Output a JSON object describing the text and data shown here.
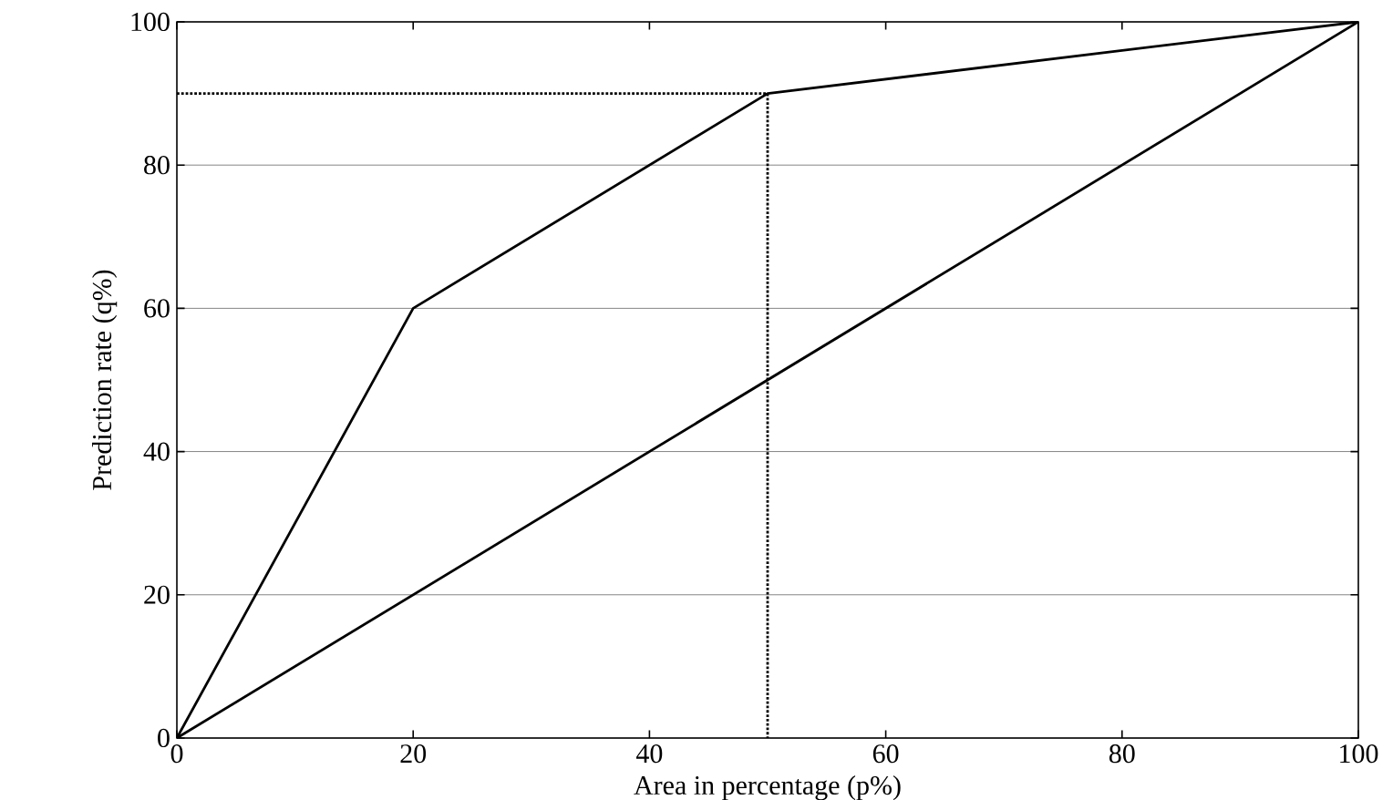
{
  "chart_data": {
    "type": "line",
    "xlabel": "Area in percentage (p%)",
    "ylabel": "Prediction rate (q%)",
    "xlim": [
      0,
      100
    ],
    "ylim": [
      0,
      100
    ],
    "xticks": [
      0,
      20,
      40,
      60,
      80,
      100
    ],
    "yticks": [
      0,
      20,
      40,
      60,
      80,
      100
    ],
    "grid": "y",
    "series": [
      {
        "color": "#000000",
        "x": [
          0,
          20,
          50,
          100
        ],
        "values": [
          0,
          60,
          90,
          100
        ],
        "line_style": "solid"
      },
      {
        "color": "#000000",
        "x": [
          0,
          100
        ],
        "values": [
          0,
          100
        ],
        "line_style": "solid"
      },
      {
        "color": "#000000",
        "x": [
          0,
          50,
          50
        ],
        "values": [
          90,
          90,
          0
        ],
        "line_style": "dotted"
      }
    ]
  }
}
